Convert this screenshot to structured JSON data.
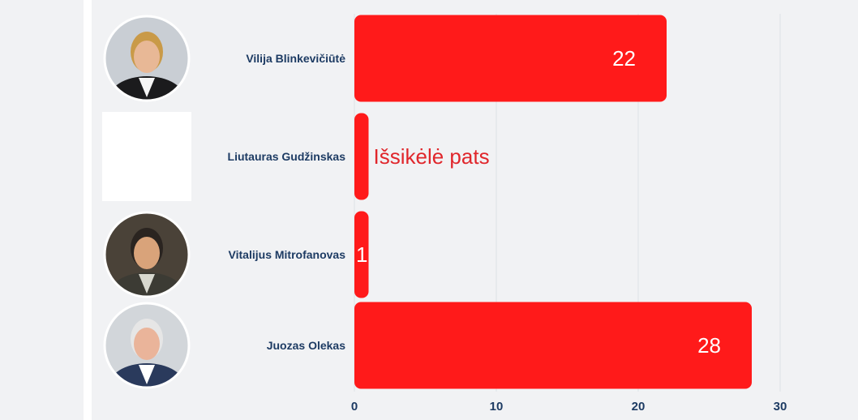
{
  "chart_data": {
    "type": "bar",
    "orientation": "horizontal",
    "categories": [
      "Vilija Blinkevičiūtė",
      "Liutauras Gudžinskas",
      "Vitalijus Mitrofanovas",
      "Juozas Olekas"
    ],
    "values": [
      22,
      1,
      1,
      28
    ],
    "data_labels": [
      "22",
      "Išsikėlė pats",
      "1",
      "28"
    ],
    "xlim": [
      0,
      30
    ],
    "x_ticks": [
      "0",
      "10",
      "20",
      "30"
    ],
    "grid": true,
    "bar_color": "#ff1a1a",
    "label_colors": {
      "inside": "#ffffff",
      "outside": "#e0262b"
    },
    "category_label_color": "#1d3b63",
    "row_icons": [
      "portrait-photo-blinkeviciute",
      "portrait-photo-gudzinskas",
      "portrait-photo-mitrofanovas",
      "portrait-photo-olekas"
    ]
  }
}
